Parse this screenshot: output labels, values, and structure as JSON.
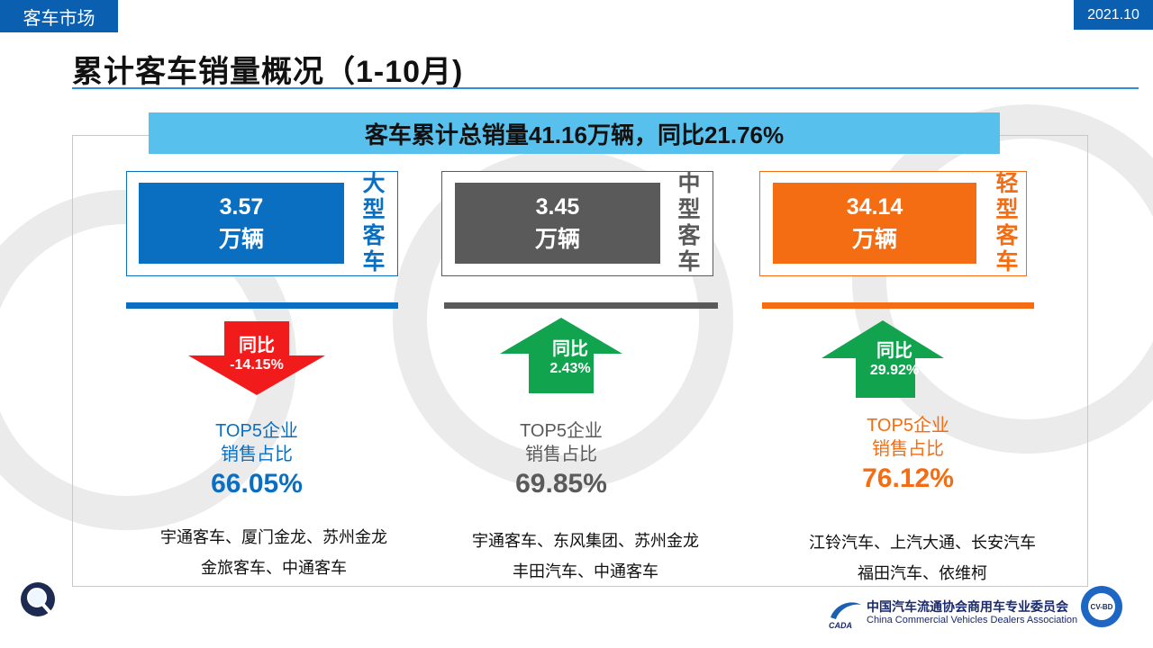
{
  "header": {
    "section_tag": "客车市场",
    "date_tag": "2021.10",
    "title": "累计客车销量概况（1-10月)"
  },
  "banner": {
    "text": "客车累计总销量41.16万辆，同比21.76%"
  },
  "colors": {
    "large": "#0b6fc1",
    "medium": "#5a5a5a",
    "light": "#f56d12",
    "up": "#11a34e",
    "down": "#f21b1b",
    "banner": "#57c0ec"
  },
  "categories": [
    {
      "key": "large",
      "label": "大型客车",
      "value": "3.57",
      "unit": "万辆",
      "yoy_label": "同比",
      "yoy_value": "-14.15%",
      "direction": "down",
      "top5_line1": "TOP5企业",
      "top5_line2": "销售占比",
      "top5_share": "66.05%",
      "companies_line1": "宇通客车、厦门金龙、苏州金龙",
      "companies_line2": "金旅客车、中通客车"
    },
    {
      "key": "medium",
      "label": "中型客车",
      "value": "3.45",
      "unit": "万辆",
      "yoy_label": "同比",
      "yoy_value": "2.43%",
      "direction": "up",
      "top5_line1": "TOP5企业",
      "top5_line2": "销售占比",
      "top5_share": "69.85%",
      "companies_line1": "宇通客车、东风集团、苏州金龙",
      "companies_line2": "丰田汽车、中通客车"
    },
    {
      "key": "light",
      "label": "轻型客车",
      "value": "34.14",
      "unit": "万辆",
      "yoy_label": "同比",
      "yoy_value": "29.92%",
      "direction": "up",
      "top5_line1": "TOP5企业",
      "top5_line2": "销售占比",
      "top5_share": "76.12%",
      "companies_line1": "江铃汽车、上汽大通、长安汽车",
      "companies_line2": "福田汽车、依维柯"
    }
  ],
  "footer": {
    "org_cn": "中国汽车流通协会商用车专业委员会",
    "org_en": "China Commercial Vehicles Dealers Association",
    "logo_text": "CADA",
    "badge_text": "CV-BD"
  },
  "icons": {
    "magnifier": "magnifier-icon",
    "org_logo": "cada-logo-icon",
    "badge": "cvbd-badge-icon"
  }
}
